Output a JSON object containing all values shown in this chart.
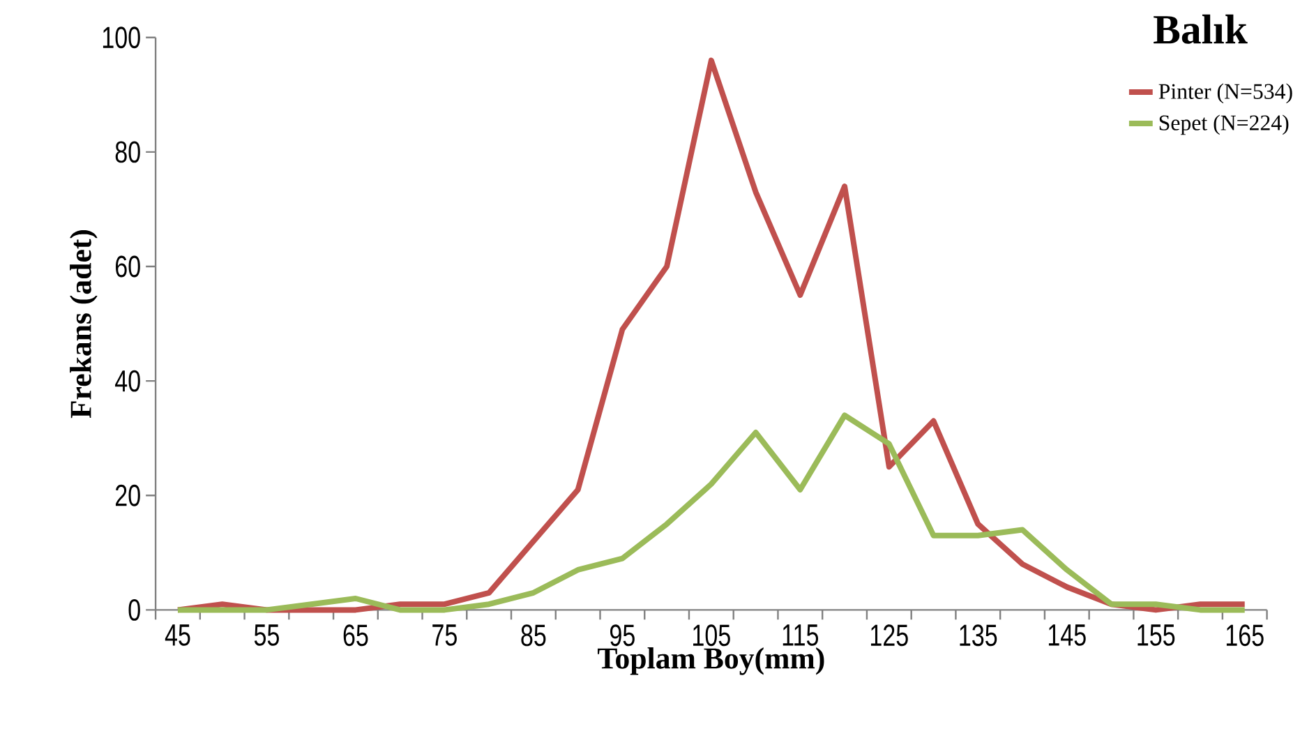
{
  "chart_data": {
    "type": "line",
    "title": "Balık",
    "xlabel": "Toplam Boy(mm)",
    "ylabel": "Frekans (adet)",
    "categories": [
      "45",
      null,
      "55",
      null,
      "65",
      null,
      "75",
      null,
      "85",
      null,
      "95",
      null,
      "105",
      null,
      "115",
      null,
      "125",
      null,
      "135",
      null,
      "145",
      null,
      "155",
      null,
      "165"
    ],
    "series": [
      {
        "name": "Pinter (N=534)",
        "color": "#c0504d",
        "values": [
          0,
          1,
          0,
          0,
          0,
          1,
          1,
          3,
          12,
          21,
          49,
          60,
          96,
          73,
          55,
          74,
          25,
          33,
          15,
          8,
          4,
          1,
          0,
          1,
          1
        ]
      },
      {
        "name": "Sepet (N=224)",
        "color": "#9bbb59",
        "values": [
          0,
          0,
          0,
          1,
          2,
          0,
          0,
          1,
          3,
          7,
          9,
          15,
          22,
          31,
          21,
          34,
          29,
          13,
          13,
          14,
          7,
          1,
          1,
          0,
          0
        ]
      }
    ],
    "ylim": [
      0,
      100
    ],
    "yticks": [
      0,
      20,
      40,
      60,
      80,
      100
    ],
    "grid": false,
    "legend": "top right"
  }
}
